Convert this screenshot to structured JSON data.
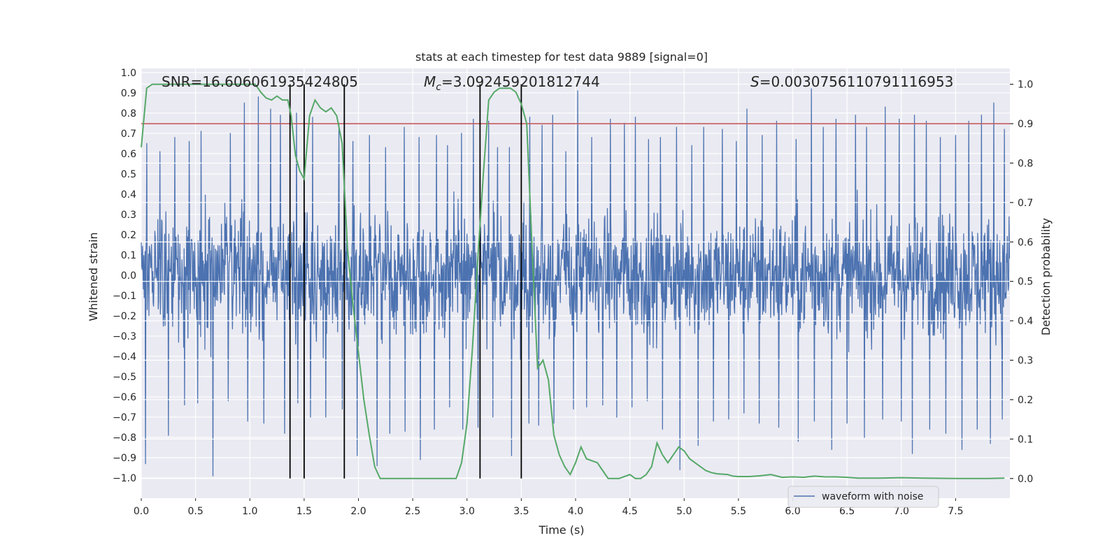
{
  "chart_data": {
    "type": "line",
    "title": "stats at each timestep for test data 9889 [signal=0]",
    "xlabel": "Time (s)",
    "ylabel": "Whitened strain",
    "ylabel_right": "Detection probability",
    "xlim": [
      0.0,
      8.0
    ],
    "ylim": [
      -1.1,
      1.02
    ],
    "ylim_right": [
      -0.05,
      1.04
    ],
    "xticks": [
      0.0,
      0.5,
      1.0,
      1.5,
      2.0,
      2.5,
      3.0,
      3.5,
      4.0,
      4.5,
      5.0,
      5.5,
      6.0,
      6.5,
      7.0,
      7.5
    ],
    "xtick_labels": [
      "0.0",
      "0.5",
      "1.0",
      "1.5",
      "2.0",
      "2.5",
      "3.0",
      "3.5",
      "4.0",
      "4.5",
      "5.0",
      "5.5",
      "6.0",
      "6.5",
      "7.0",
      "7.5"
    ],
    "yticks": [
      1.0,
      0.9,
      0.8,
      0.7,
      0.6,
      0.5,
      0.4,
      0.3,
      0.2,
      0.1,
      0.0,
      -0.1,
      -0.2,
      -0.3,
      -0.4,
      -0.5,
      -0.6,
      -0.7,
      -0.8,
      -0.9,
      -1.0
    ],
    "ytick_labels": [
      "1.0",
      "0.9",
      "0.8",
      "0.7",
      "0.6",
      "0.5",
      "0.4",
      "0.3",
      "0.2",
      "0.1",
      "0.0",
      "−0.1",
      "−0.2",
      "−0.3",
      "−0.4",
      "−0.5",
      "−0.6",
      "−0.7",
      "−0.8",
      "−0.9",
      "−1.0"
    ],
    "yticks_right": [
      1.0,
      0.9,
      0.8,
      0.7,
      0.6,
      0.5,
      0.4,
      0.3,
      0.2,
      0.1,
      0.0
    ],
    "ytick_labels_right": [
      "1.0",
      "0.9",
      "0.8",
      "0.7",
      "0.6",
      "0.5",
      "0.4",
      "0.3",
      "0.2",
      "0.1",
      "0.0"
    ],
    "annotations": {
      "snr": "SNR=16.606061935424805",
      "mc_symbol": "M",
      "mc_sub": "c",
      "mc_value": "=3.092459201812744",
      "s_symbol": "S",
      "s_value": "=0.0030756110791116953"
    },
    "legend": {
      "label": "waveform with noise",
      "position": "lower-right"
    },
    "threshold": {
      "value_right": 0.9,
      "color": "#c44e52"
    },
    "vertical_lines": [
      1.37,
      1.5,
      1.87,
      3.12,
      3.5
    ],
    "vertical_lines_ymax_right": 1.0,
    "waveform": {
      "name": "waveform with noise",
      "color": "#4c72b0",
      "duration": 8.0,
      "n_samples": 2048,
      "seed": 9889,
      "envelope": 0.45,
      "spikes_up": [
        {
          "t": 0.05,
          "v": 0.65
        },
        {
          "t": 0.17,
          "v": 0.61
        },
        {
          "t": 0.31,
          "v": 0.68
        },
        {
          "t": 0.44,
          "v": 0.66
        },
        {
          "t": 0.55,
          "v": 0.71
        },
        {
          "t": 0.66,
          "v": 0.82
        },
        {
          "t": 0.82,
          "v": 0.7
        },
        {
          "t": 0.95,
          "v": 0.85
        },
        {
          "t": 1.08,
          "v": 0.88
        },
        {
          "t": 1.19,
          "v": 0.82
        },
        {
          "t": 1.28,
          "v": 0.79
        },
        {
          "t": 1.43,
          "v": 0.8
        },
        {
          "t": 1.58,
          "v": 0.78
        },
        {
          "t": 1.7,
          "v": 0.84
        },
        {
          "t": 1.82,
          "v": 0.75
        },
        {
          "t": 1.95,
          "v": 0.66
        },
        {
          "t": 2.1,
          "v": 0.69
        },
        {
          "t": 2.25,
          "v": 0.63
        },
        {
          "t": 2.42,
          "v": 0.73
        },
        {
          "t": 2.56,
          "v": 0.68
        },
        {
          "t": 2.72,
          "v": 0.69
        },
        {
          "t": 2.82,
          "v": 0.64
        },
        {
          "t": 2.95,
          "v": 0.7
        },
        {
          "t": 3.06,
          "v": 0.77
        },
        {
          "t": 3.2,
          "v": 0.76
        },
        {
          "t": 3.28,
          "v": 0.63
        },
        {
          "t": 3.39,
          "v": 0.63
        },
        {
          "t": 3.58,
          "v": 0.78
        },
        {
          "t": 3.69,
          "v": 0.74
        },
        {
          "t": 3.79,
          "v": 0.79
        },
        {
          "t": 3.91,
          "v": 0.61
        },
        {
          "t": 4.02,
          "v": 0.91
        },
        {
          "t": 4.15,
          "v": 0.68
        },
        {
          "t": 4.32,
          "v": 0.77
        },
        {
          "t": 4.45,
          "v": 0.75
        },
        {
          "t": 4.55,
          "v": 0.78
        },
        {
          "t": 4.67,
          "v": 0.67
        },
        {
          "t": 4.78,
          "v": 0.68
        },
        {
          "t": 4.93,
          "v": 0.73
        },
        {
          "t": 5.07,
          "v": 0.64
        },
        {
          "t": 5.18,
          "v": 0.73
        },
        {
          "t": 5.35,
          "v": 0.72
        },
        {
          "t": 5.48,
          "v": 0.66
        },
        {
          "t": 5.58,
          "v": 0.82
        },
        {
          "t": 5.72,
          "v": 0.69
        },
        {
          "t": 5.85,
          "v": 0.76
        },
        {
          "t": 6.03,
          "v": 0.67
        },
        {
          "t": 6.17,
          "v": 0.92
        },
        {
          "t": 6.28,
          "v": 0.73
        },
        {
          "t": 6.4,
          "v": 0.77
        },
        {
          "t": 6.58,
          "v": 0.79
        },
        {
          "t": 6.68,
          "v": 0.73
        },
        {
          "t": 6.85,
          "v": 0.83
        },
        {
          "t": 6.98,
          "v": 0.77
        },
        {
          "t": 7.12,
          "v": 0.79
        },
        {
          "t": 7.23,
          "v": 0.76
        },
        {
          "t": 7.36,
          "v": 0.68
        },
        {
          "t": 7.5,
          "v": 0.69
        },
        {
          "t": 7.62,
          "v": 0.76
        },
        {
          "t": 7.74,
          "v": 0.79
        },
        {
          "t": 7.85,
          "v": 0.85
        },
        {
          "t": 7.95,
          "v": 0.72
        }
      ],
      "spikes_down": [
        {
          "t": 0.04,
          "v": -0.93
        },
        {
          "t": 0.25,
          "v": -0.79
        },
        {
          "t": 0.4,
          "v": -0.64
        },
        {
          "t": 0.52,
          "v": -0.63
        },
        {
          "t": 0.66,
          "v": -0.99
        },
        {
          "t": 0.8,
          "v": -0.62
        },
        {
          "t": 0.98,
          "v": -0.72
        },
        {
          "t": 1.13,
          "v": -0.73
        },
        {
          "t": 1.32,
          "v": -0.78
        },
        {
          "t": 1.44,
          "v": -0.63
        },
        {
          "t": 1.56,
          "v": -0.7
        },
        {
          "t": 1.7,
          "v": -0.7
        },
        {
          "t": 1.85,
          "v": -0.66
        },
        {
          "t": 1.99,
          "v": -0.89
        },
        {
          "t": 2.17,
          "v": -0.94
        },
        {
          "t": 2.29,
          "v": -0.78
        },
        {
          "t": 2.43,
          "v": -0.77
        },
        {
          "t": 2.57,
          "v": -0.91
        },
        {
          "t": 2.7,
          "v": -0.76
        },
        {
          "t": 2.84,
          "v": -0.65
        },
        {
          "t": 2.96,
          "v": -0.76
        },
        {
          "t": 3.1,
          "v": -0.75
        },
        {
          "t": 3.24,
          "v": -0.7
        },
        {
          "t": 3.41,
          "v": -0.89
        },
        {
          "t": 3.57,
          "v": -0.73
        },
        {
          "t": 3.66,
          "v": -0.74
        },
        {
          "t": 3.8,
          "v": -0.73
        },
        {
          "t": 3.98,
          "v": -0.66
        },
        {
          "t": 4.1,
          "v": -0.65
        },
        {
          "t": 4.25,
          "v": -0.64
        },
        {
          "t": 4.38,
          "v": -0.7
        },
        {
          "t": 4.52,
          "v": -0.65
        },
        {
          "t": 4.66,
          "v": -0.62
        },
        {
          "t": 4.8,
          "v": -0.76
        },
        {
          "t": 4.96,
          "v": -0.96
        },
        {
          "t": 5.13,
          "v": -0.84
        },
        {
          "t": 5.27,
          "v": -0.72
        },
        {
          "t": 5.41,
          "v": -0.71
        },
        {
          "t": 5.55,
          "v": -0.68
        },
        {
          "t": 5.69,
          "v": -0.73
        },
        {
          "t": 5.87,
          "v": -0.75
        },
        {
          "t": 6.05,
          "v": -0.82
        },
        {
          "t": 6.2,
          "v": -0.72
        },
        {
          "t": 6.36,
          "v": -0.86
        },
        {
          "t": 6.5,
          "v": -0.73
        },
        {
          "t": 6.66,
          "v": -0.8
        },
        {
          "t": 6.83,
          "v": -0.71
        },
        {
          "t": 7.0,
          "v": -0.72
        },
        {
          "t": 7.1,
          "v": -0.88
        },
        {
          "t": 7.26,
          "v": -0.76
        },
        {
          "t": 7.41,
          "v": -0.78
        },
        {
          "t": 7.56,
          "v": -0.86
        },
        {
          "t": 7.7,
          "v": -0.76
        },
        {
          "t": 7.82,
          "v": -0.83
        },
        {
          "t": 7.93,
          "v": -0.71
        }
      ]
    },
    "probability": {
      "color": "#55a868",
      "x": [
        0.0,
        0.05,
        0.1,
        0.15,
        0.2,
        0.3,
        0.4,
        0.5,
        0.6,
        0.7,
        0.8,
        0.9,
        1.0,
        1.05,
        1.1,
        1.15,
        1.2,
        1.25,
        1.3,
        1.35,
        1.38,
        1.42,
        1.46,
        1.5,
        1.55,
        1.6,
        1.65,
        1.7,
        1.75,
        1.8,
        1.85,
        1.9,
        1.95,
        2.0,
        2.05,
        2.1,
        2.15,
        2.2,
        2.25,
        2.4,
        2.6,
        2.8,
        2.85,
        2.9,
        2.95,
        3.0,
        3.05,
        3.1,
        3.15,
        3.2,
        3.25,
        3.3,
        3.4,
        3.45,
        3.5,
        3.55,
        3.6,
        3.65,
        3.7,
        3.75,
        3.8,
        3.85,
        3.9,
        3.95,
        4.0,
        4.05,
        4.1,
        4.2,
        4.25,
        4.3,
        4.35,
        4.4,
        4.5,
        4.55,
        4.6,
        4.65,
        4.7,
        4.75,
        4.8,
        4.85,
        4.9,
        4.95,
        5.0,
        5.05,
        5.1,
        5.2,
        5.25,
        5.3,
        5.4,
        5.45,
        5.5,
        5.6,
        5.7,
        5.8,
        5.9,
        6.0,
        6.1,
        6.2,
        6.3,
        6.4,
        6.5,
        6.6,
        6.8,
        7.0,
        7.2,
        7.5,
        7.8,
        7.95
      ],
      "y": [
        0.84,
        0.99,
        1.0,
        1.0,
        1.0,
        1.0,
        1.0,
        1.0,
        1.0,
        1.0,
        1.0,
        1.0,
        1.0,
        1.0,
        0.98,
        0.965,
        0.96,
        0.97,
        0.96,
        0.96,
        0.92,
        0.82,
        0.78,
        0.76,
        0.92,
        0.96,
        0.94,
        0.93,
        0.94,
        0.92,
        0.85,
        0.58,
        0.44,
        0.32,
        0.2,
        0.11,
        0.03,
        0.0,
        0.0,
        0.0,
        0.0,
        0.0,
        0.0,
        0.0,
        0.04,
        0.14,
        0.33,
        0.56,
        0.77,
        0.96,
        0.98,
        0.99,
        0.99,
        0.98,
        0.95,
        0.9,
        0.58,
        0.28,
        0.3,
        0.25,
        0.11,
        0.06,
        0.03,
        0.01,
        0.04,
        0.08,
        0.05,
        0.04,
        0.02,
        0.0,
        0.0,
        0.0,
        0.01,
        0.0,
        0.0,
        0.01,
        0.03,
        0.09,
        0.06,
        0.04,
        0.06,
        0.08,
        0.07,
        0.05,
        0.04,
        0.02,
        0.015,
        0.012,
        0.01,
        0.006,
        0.005,
        0.005,
        0.007,
        0.01,
        0.003,
        0.004,
        0.003,
        0.006,
        0.004,
        0.004,
        0.003,
        0.001,
        0.001,
        0.002,
        0.001,
        0.0,
        0.0,
        0.001
      ]
    }
  }
}
